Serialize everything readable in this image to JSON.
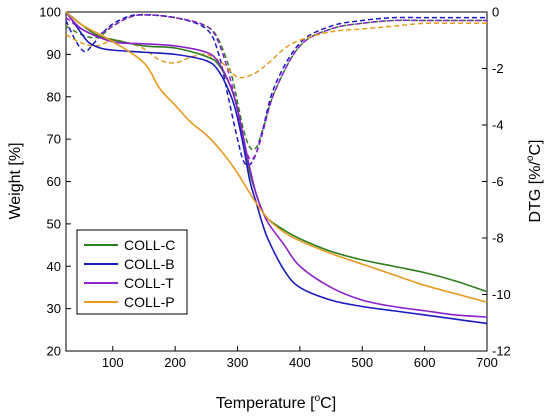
{
  "chart_data": {
    "type": "line",
    "x_axis": {
      "label": "Temperature [",
      "unit_sup": "o",
      "unit_tail": "C]",
      "range": [
        25,
        700
      ],
      "ticks": [
        100,
        200,
        300,
        400,
        500,
        600,
        700
      ]
    },
    "y_left": {
      "label": "Weight [%]",
      "range": [
        20,
        100
      ],
      "ticks": [
        20,
        30,
        40,
        50,
        60,
        70,
        80,
        90,
        100
      ]
    },
    "y_right": {
      "label": "DTG [%/",
      "unit_sup": "o",
      "unit_tail": "C]",
      "range": [
        -12,
        0
      ],
      "ticks": [
        -12,
        -10,
        -8,
        -6,
        -4,
        -2,
        0
      ]
    },
    "legend": {
      "position": "bottom-left"
    },
    "colors": {
      "COLL-C": "#2e7d1e",
      "COLL-B": "#1b1bbf",
      "COLL-T": "#8b22cc",
      "COLL-P": "#e69a1e"
    },
    "weight_series": [
      {
        "name": "COLL-C",
        "x": [
          25,
          50,
          75,
          100,
          150,
          200,
          250,
          270,
          290,
          300,
          310,
          320,
          330,
          340,
          350,
          375,
          400,
          450,
          500,
          550,
          600,
          650,
          700
        ],
        "values": [
          100,
          97,
          94.5,
          93.5,
          92,
          91.5,
          89.5,
          87.5,
          82,
          77,
          70,
          62,
          57,
          53,
          51,
          48.5,
          46.5,
          43.5,
          41.5,
          40,
          38.5,
          36.5,
          34
        ]
      },
      {
        "name": "COLL-B",
        "x": [
          25,
          40,
          60,
          80,
          100,
          150,
          200,
          250,
          270,
          290,
          300,
          310,
          320,
          330,
          340,
          350,
          375,
          400,
          450,
          500,
          550,
          600,
          650,
          700
        ],
        "values": [
          100,
          97,
          93,
          91.5,
          91,
          90.5,
          90,
          88.5,
          86,
          80,
          75,
          68,
          60,
          55,
          50,
          46,
          39,
          35,
          32,
          30.5,
          29.5,
          28.5,
          27.5,
          26.5
        ]
      },
      {
        "name": "COLL-T",
        "x": [
          25,
          50,
          100,
          150,
          200,
          250,
          270,
          290,
          300,
          310,
          320,
          330,
          340,
          350,
          375,
          400,
          450,
          500,
          550,
          600,
          650,
          700
        ],
        "values": [
          100,
          96,
          93,
          92.5,
          92,
          90.5,
          88,
          82,
          77,
          70,
          63,
          57,
          53,
          50,
          45,
          40,
          35,
          32,
          30.5,
          29.5,
          28.5,
          28
        ]
      },
      {
        "name": "COLL-P",
        "x": [
          25,
          50,
          100,
          150,
          175,
          200,
          225,
          250,
          275,
          300,
          325,
          350,
          375,
          400,
          450,
          500,
          550,
          600,
          650,
          700
        ],
        "values": [
          100,
          97,
          93,
          88,
          82,
          78,
          74,
          71,
          67,
          62,
          56,
          51,
          48,
          46,
          43,
          40.5,
          38,
          35.5,
          33.5,
          31.5
        ]
      }
    ],
    "dtg_series": [
      {
        "name": "COLL-C",
        "x": [
          25,
          50,
          75,
          100,
          125,
          150,
          200,
          250,
          270,
          290,
          300,
          310,
          320,
          330,
          340,
          360,
          400,
          450,
          500,
          550,
          600,
          650,
          700
        ],
        "values": [
          -0.5,
          -0.8,
          -0.9,
          -0.5,
          -0.2,
          -0.1,
          -0.2,
          -0.5,
          -1.0,
          -2.2,
          -3.2,
          -4.2,
          -4.8,
          -4.8,
          -4.2,
          -2.8,
          -1.2,
          -0.6,
          -0.4,
          -0.3,
          -0.3,
          -0.3,
          -0.3
        ]
      },
      {
        "name": "COLL-B",
        "x": [
          25,
          40,
          55,
          70,
          90,
          110,
          140,
          200,
          250,
          270,
          285,
          300,
          310,
          320,
          330,
          340,
          360,
          400,
          450,
          500,
          550,
          600,
          650,
          700
        ],
        "values": [
          -0.3,
          -1.0,
          -1.4,
          -1.1,
          -0.6,
          -0.3,
          -0.1,
          -0.2,
          -0.6,
          -1.5,
          -3.0,
          -4.5,
          -5.3,
          -5.4,
          -5.0,
          -4.2,
          -2.6,
          -1.1,
          -0.5,
          -0.3,
          -0.2,
          -0.2,
          -0.2,
          -0.2
        ]
      },
      {
        "name": "COLL-T",
        "x": [
          25,
          50,
          75,
          100,
          125,
          150,
          200,
          250,
          270,
          290,
          300,
          310,
          320,
          330,
          340,
          360,
          400,
          450,
          500,
          550,
          600,
          650,
          700
        ],
        "values": [
          -0.2,
          -0.6,
          -0.8,
          -0.5,
          -0.2,
          -0.1,
          -0.2,
          -0.5,
          -1.1,
          -2.5,
          -3.5,
          -4.6,
          -5.2,
          -5.0,
          -4.3,
          -2.8,
          -1.2,
          -0.6,
          -0.4,
          -0.3,
          -0.3,
          -0.3,
          -0.3
        ]
      },
      {
        "name": "COLL-P",
        "x": [
          25,
          50,
          75,
          100,
          125,
          150,
          175,
          200,
          225,
          250,
          275,
          300,
          325,
          350,
          375,
          400,
          450,
          500,
          550,
          600,
          650,
          700
        ],
        "values": [
          -0.8,
          -1.1,
          -1.2,
          -1.0,
          -1.1,
          -1.3,
          -1.7,
          -1.8,
          -1.6,
          -1.5,
          -1.8,
          -2.3,
          -2.2,
          -1.8,
          -1.3,
          -1.0,
          -0.7,
          -0.6,
          -0.5,
          -0.4,
          -0.4,
          -0.4
        ]
      }
    ]
  }
}
